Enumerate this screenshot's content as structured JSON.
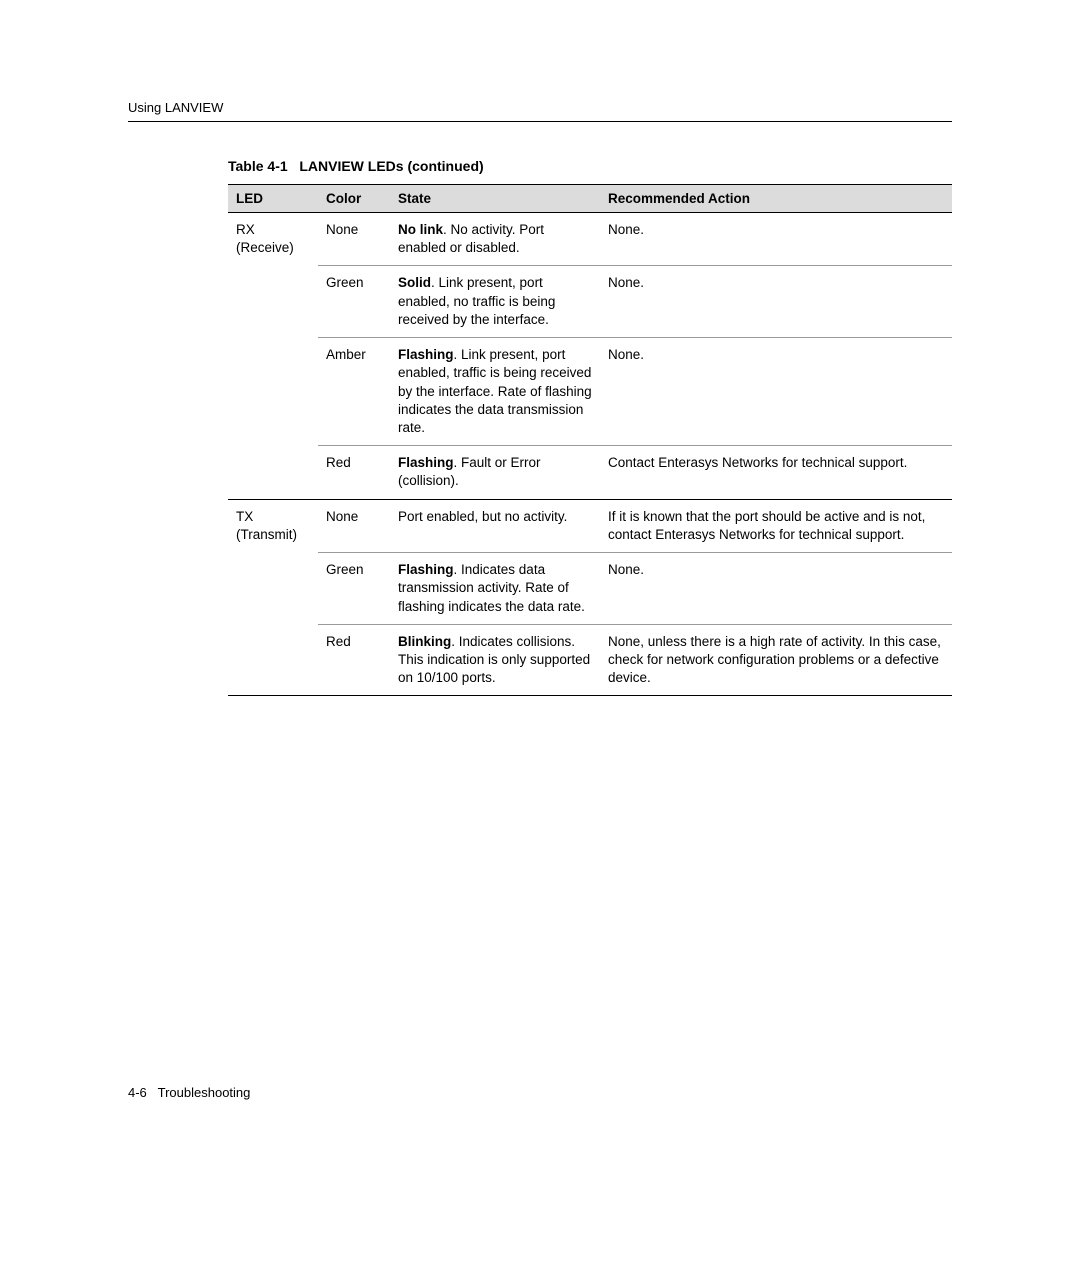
{
  "header": {
    "section_title": "Using LANVIEW"
  },
  "table": {
    "caption_prefix": "Table 4-1",
    "caption_title": "LANVIEW LEDs (continued)",
    "columns": {
      "led": "LED",
      "color": "Color",
      "state": "State",
      "action": "Recommended Action"
    },
    "groups": [
      {
        "led_label": "RX (Receive)",
        "rows": [
          {
            "color": "None",
            "state_bold": "No link",
            "state_rest": ". No activity. Port enabled or disabled.",
            "action": "None."
          },
          {
            "color": "Green",
            "state_bold": "Solid",
            "state_rest": ". Link present, port enabled, no traffic is being received by the interface.",
            "action": "None."
          },
          {
            "color": "Amber",
            "state_bold": "Flashing",
            "state_rest": ". Link present, port enabled, traffic is being received by the interface. Rate of flashing indicates the data transmission rate.",
            "action": "None."
          },
          {
            "color": "Red",
            "state_bold": "Flashing",
            "state_rest": ". Fault or Error (collision).",
            "action": "Contact Enterasys Networks for technical support."
          }
        ]
      },
      {
        "led_label": "TX (Transmit)",
        "rows": [
          {
            "color": "None",
            "state_bold": "",
            "state_rest": "Port enabled, but no activity.",
            "action": "If it is known that the port should be active and is not, contact Enterasys Networks for technical support."
          },
          {
            "color": "Green",
            "state_bold": "Flashing",
            "state_rest": ". Indicates data transmission activity. Rate of flashing indicates the data rate.",
            "action": "None."
          },
          {
            "color": "Red",
            "state_bold": "Blinking",
            "state_rest": ". Indicates collisions. This indication is only supported on 10/100 ports.",
            "action": "None, unless there is a high rate of activity. In this case, check for network configuration problems or a defective device."
          }
        ]
      }
    ]
  },
  "footer": {
    "page_number": "4-6",
    "chapter": "Troubleshooting"
  }
}
